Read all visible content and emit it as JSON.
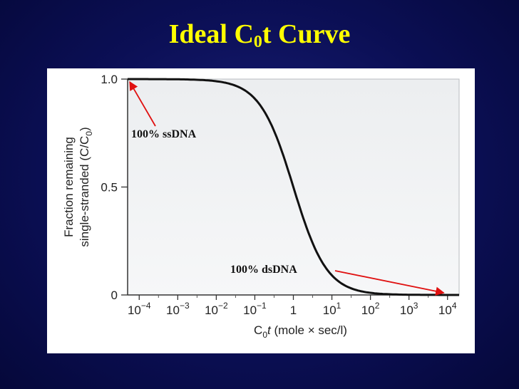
{
  "slide": {
    "title_main": "Ideal C",
    "title_sub": "0",
    "title_end": "t Curve"
  },
  "chart_data": {
    "type": "line",
    "title": "Ideal C0t Curve",
    "xlabel": "C0t (mole × sec/l)",
    "ylabel": "Fraction remaining single-stranded (C/C0)",
    "x_scale": "log",
    "xlim": [
      5e-05,
      20000
    ],
    "ylim": [
      0,
      1.0
    ],
    "x_ticks": [
      0.0001,
      0.001,
      0.01,
      0.1,
      1,
      10,
      100,
      1000,
      10000
    ],
    "x_tick_labels": [
      {
        "base": "10",
        "exp": "−4"
      },
      {
        "base": "10",
        "exp": "−3"
      },
      {
        "base": "10",
        "exp": "−2"
      },
      {
        "base": "10",
        "exp": "−1"
      },
      {
        "base": "1",
        "exp": ""
      },
      {
        "base": "10",
        "exp": "1"
      },
      {
        "base": "10",
        "exp": "2"
      },
      {
        "base": "10",
        "exp": "3"
      },
      {
        "base": "10",
        "exp": "4"
      }
    ],
    "y_ticks": [
      0,
      0.5,
      1.0
    ],
    "y_tick_labels": [
      "0",
      "0.5",
      "1.0"
    ],
    "grid": false,
    "series": [
      {
        "color": "#111111",
        "x": [
          5e-05,
          0.0001,
          0.001,
          0.01,
          0.1,
          0.3,
          1,
          3,
          10,
          30,
          100,
          300,
          1000,
          3000,
          10000,
          20000
        ],
        "y": [
          1.0,
          1.0,
          0.999,
          0.99,
          0.91,
          0.77,
          0.5,
          0.25,
          0.09,
          0.032,
          0.01,
          0.0033,
          0.001,
          0.0003,
          0.0001,
          0.0001
        ]
      }
    ],
    "annotations": [
      {
        "text": "100% ssDNA",
        "points_to": {
          "x": 5e-05,
          "y": 1.0
        },
        "arrow_color": "#e01010"
      },
      {
        "text": "100%  dsDNA",
        "points_to": {
          "x": 8000,
          "y": 0.0
        },
        "arrow_color": "#e01010"
      }
    ]
  }
}
